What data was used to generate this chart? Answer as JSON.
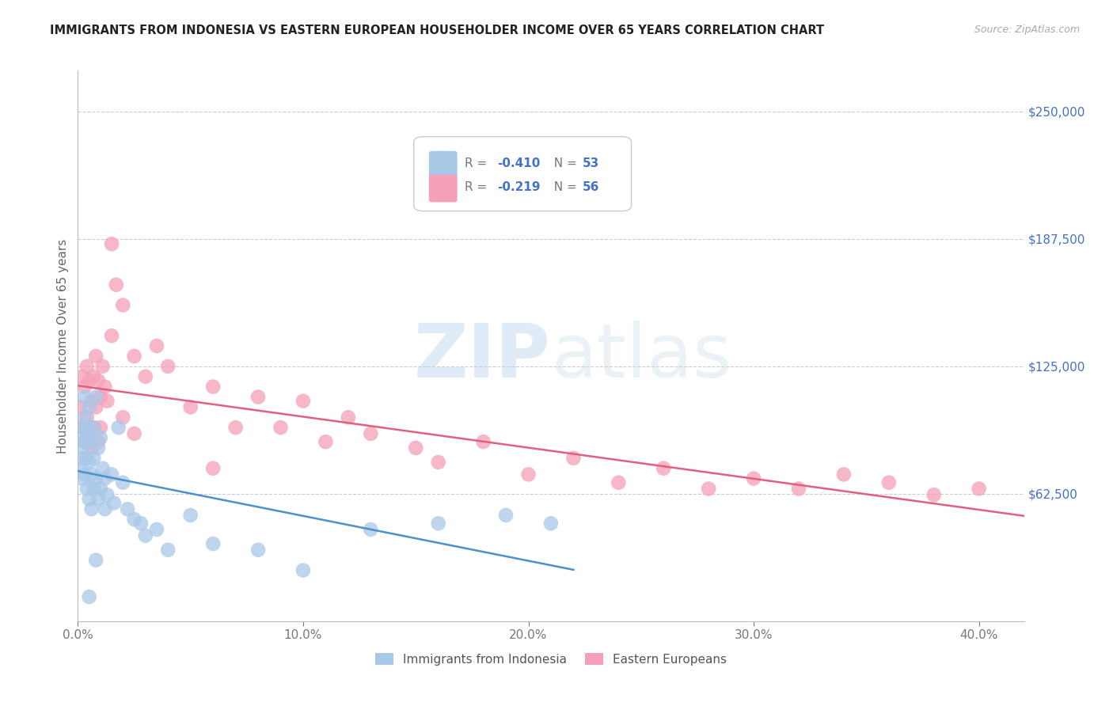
{
  "title": "IMMIGRANTS FROM INDONESIA VS EASTERN EUROPEAN HOUSEHOLDER INCOME OVER 65 YEARS CORRELATION CHART",
  "source": "Source: ZipAtlas.com",
  "ylabel": "Householder Income Over 65 years",
  "xlim": [
    0.0,
    0.42
  ],
  "ylim": [
    0,
    270000
  ],
  "color_blue": "#a8c8e8",
  "color_pink": "#f4a0b8",
  "color_blue_line": "#5090c8",
  "color_pink_line": "#e06080",
  "watermark_zip": "ZIP",
  "watermark_atlas": "atlas",
  "indonesia_x": [
    0.001,
    0.001,
    0.002,
    0.002,
    0.002,
    0.002,
    0.003,
    0.003,
    0.003,
    0.003,
    0.004,
    0.004,
    0.004,
    0.005,
    0.005,
    0.005,
    0.005,
    0.006,
    0.006,
    0.006,
    0.007,
    0.007,
    0.007,
    0.008,
    0.008,
    0.009,
    0.009,
    0.01,
    0.01,
    0.011,
    0.012,
    0.012,
    0.013,
    0.015,
    0.016,
    0.018,
    0.02,
    0.022,
    0.025,
    0.028,
    0.03,
    0.035,
    0.04,
    0.05,
    0.06,
    0.08,
    0.1,
    0.13,
    0.16,
    0.19,
    0.21,
    0.005,
    0.008
  ],
  "indonesia_y": [
    90000,
    75000,
    95000,
    85000,
    80000,
    70000,
    110000,
    100000,
    88000,
    72000,
    95000,
    80000,
    65000,
    105000,
    90000,
    78000,
    60000,
    88000,
    72000,
    55000,
    95000,
    80000,
    65000,
    110000,
    70000,
    85000,
    60000,
    90000,
    65000,
    75000,
    55000,
    70000,
    62000,
    72000,
    58000,
    95000,
    68000,
    55000,
    50000,
    48000,
    42000,
    45000,
    35000,
    52000,
    38000,
    35000,
    25000,
    45000,
    48000,
    52000,
    48000,
    12000,
    30000
  ],
  "eastern_x": [
    0.001,
    0.002,
    0.002,
    0.003,
    0.003,
    0.004,
    0.004,
    0.005,
    0.005,
    0.006,
    0.006,
    0.007,
    0.007,
    0.008,
    0.008,
    0.009,
    0.009,
    0.01,
    0.01,
    0.011,
    0.012,
    0.013,
    0.015,
    0.017,
    0.02,
    0.025,
    0.03,
    0.035,
    0.04,
    0.05,
    0.06,
    0.07,
    0.08,
    0.09,
    0.1,
    0.11,
    0.12,
    0.13,
    0.15,
    0.16,
    0.18,
    0.2,
    0.22,
    0.24,
    0.26,
    0.28,
    0.3,
    0.32,
    0.34,
    0.36,
    0.38,
    0.4,
    0.015,
    0.02,
    0.025,
    0.06
  ],
  "eastern_y": [
    105000,
    120000,
    95000,
    115000,
    88000,
    125000,
    100000,
    118000,
    90000,
    108000,
    85000,
    120000,
    95000,
    130000,
    105000,
    118000,
    88000,
    110000,
    95000,
    125000,
    115000,
    108000,
    140000,
    165000,
    155000,
    130000,
    120000,
    135000,
    125000,
    105000,
    115000,
    95000,
    110000,
    95000,
    108000,
    88000,
    100000,
    92000,
    85000,
    78000,
    88000,
    72000,
    80000,
    68000,
    75000,
    65000,
    70000,
    65000,
    72000,
    68000,
    62000,
    65000,
    185000,
    100000,
    92000,
    75000
  ],
  "xlabel_ticks": [
    "0.0%",
    "10.0%",
    "20.0%",
    "30.0%",
    "40.0%"
  ],
  "xlabel_tick_vals": [
    0.0,
    0.1,
    0.2,
    0.3,
    0.4
  ],
  "ylabel_right_labels": [
    "$62,500",
    "$125,000",
    "$187,500",
    "$250,000"
  ],
  "ylabel_right_vals": [
    62500,
    125000,
    187500,
    250000
  ],
  "ylabel_grid_vals": [
    62500,
    125000,
    187500,
    250000
  ],
  "legend_footer1": "Immigrants from Indonesia",
  "legend_footer2": "Eastern Europeans"
}
